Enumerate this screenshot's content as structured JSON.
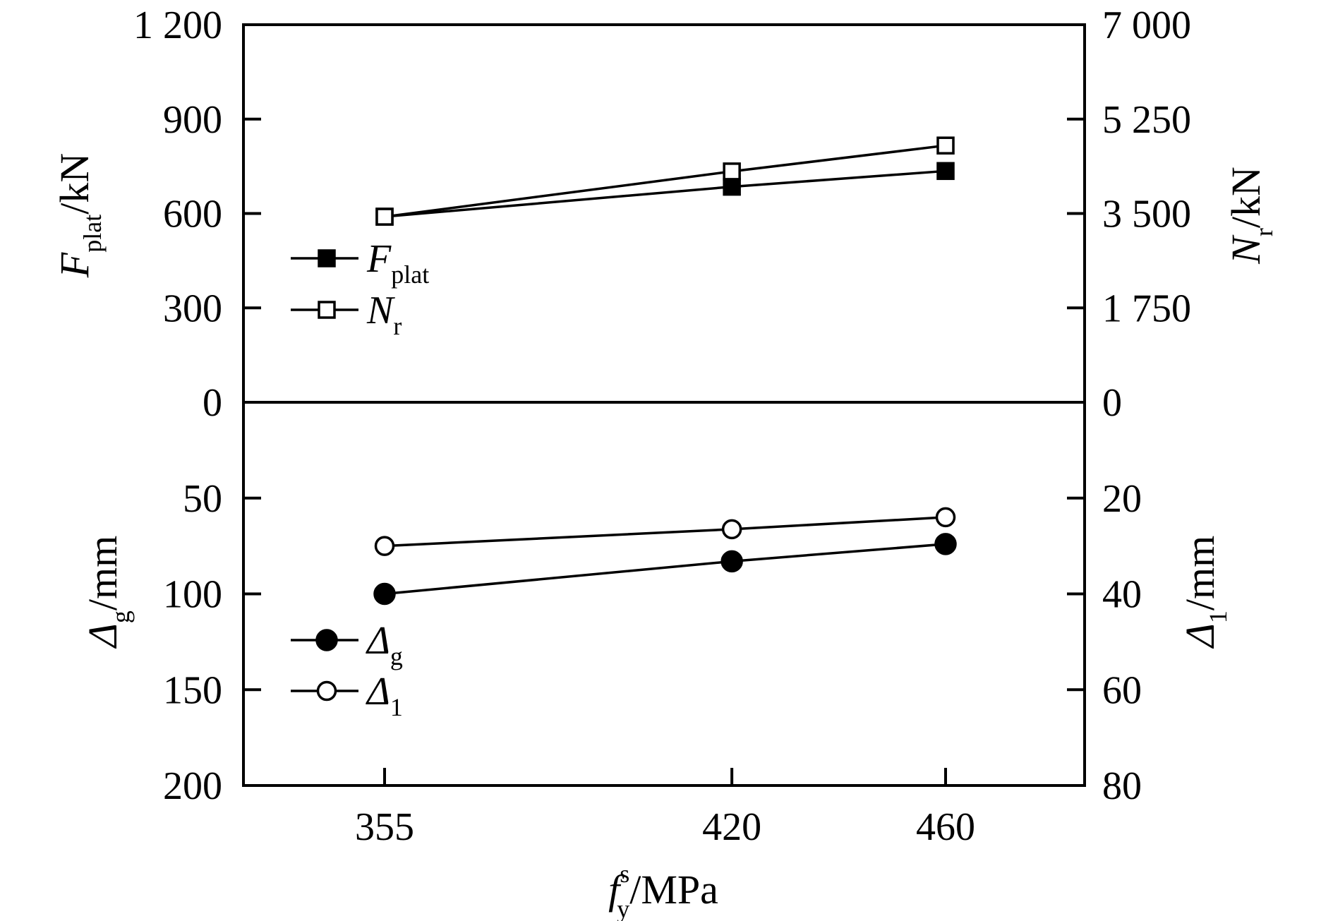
{
  "chart_data": [
    {
      "type": "line",
      "panel": "top",
      "x": [
        355,
        420,
        460
      ],
      "x_tick_labels": [
        "355",
        "420",
        "460"
      ],
      "xlabel": {
        "main": "f",
        "sub": "y",
        "sup": "s",
        "unit": "/MPa"
      },
      "ylabel_left": {
        "main": "F",
        "sub": "plat",
        "unit": "/kN"
      },
      "ylabel_right": {
        "main": "N",
        "sub": "r",
        "unit": "/kN"
      },
      "ylim_left": [
        0,
        1200
      ],
      "ylim_right": [
        0,
        7000
      ],
      "y_ticks_left": [
        "0",
        "300",
        "600",
        "900",
        "1 200"
      ],
      "y_ticks_right": [
        "0",
        "1 750",
        "3 500",
        "5 250",
        "7 000"
      ],
      "grid": false,
      "legend_position": "left",
      "series": [
        {
          "name": "F",
          "name_sub": "plat",
          "axis": "left",
          "marker": "filled-square",
          "values": [
            590,
            685,
            735
          ]
        },
        {
          "name": "N",
          "name_sub": "r",
          "axis": "right",
          "marker": "open-square",
          "values": [
            3440,
            4280,
            4760
          ]
        }
      ]
    },
    {
      "type": "line",
      "panel": "bottom",
      "x": [
        355,
        420,
        460
      ],
      "ylabel_left": {
        "main": "Δ",
        "sub": "g",
        "unit": "/mm"
      },
      "ylabel_right": {
        "main": "Δ",
        "sub": "1",
        "unit": "/mm"
      },
      "ylim_left": [
        0,
        200
      ],
      "ylim_right": [
        0,
        80
      ],
      "y_inverted": true,
      "y_ticks_left": [
        "50",
        "100",
        "150",
        "200"
      ],
      "y_ticks_right": [
        "20",
        "40",
        "60",
        "80"
      ],
      "grid": false,
      "legend_position": "left",
      "series": [
        {
          "name": "Δ",
          "name_sub": "g",
          "axis": "left",
          "marker": "filled-circle",
          "values": [
            100,
            83,
            74
          ]
        },
        {
          "name": "Δ",
          "name_sub": "1",
          "axis": "right",
          "marker": "open-circle",
          "values": [
            30,
            26.5,
            24
          ]
        }
      ]
    }
  ]
}
